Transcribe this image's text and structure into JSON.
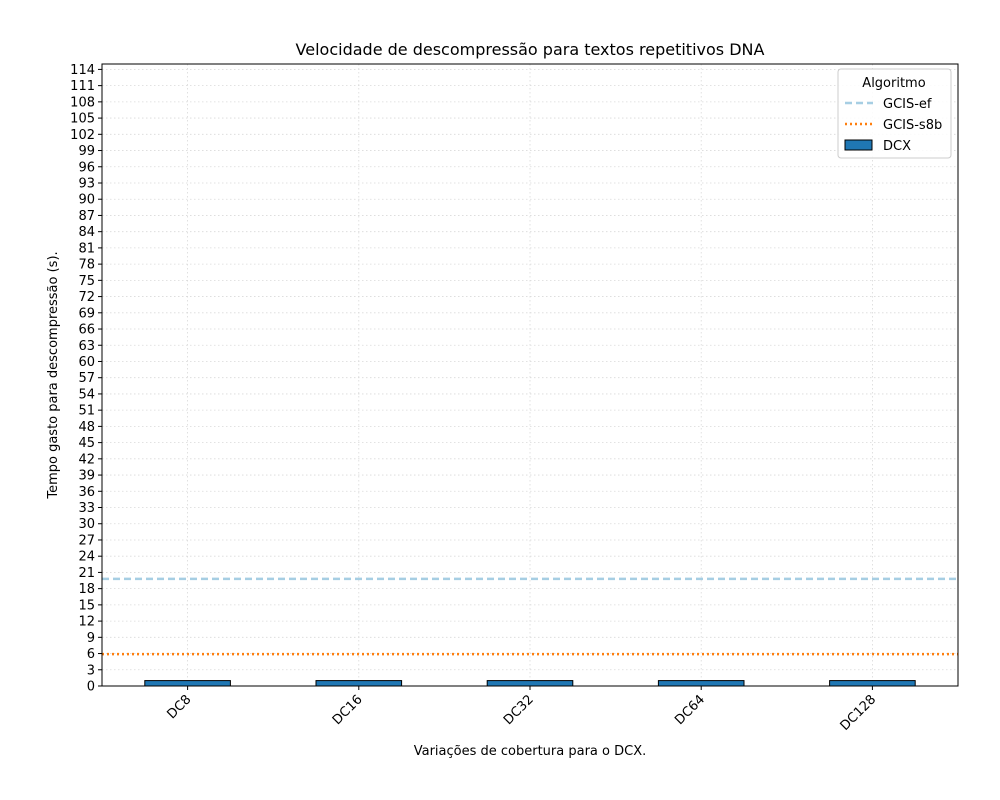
{
  "chart_data": {
    "type": "bar",
    "title": "Velocidade de descompressão para textos repetitivos DNA",
    "xlabel": "Variações de cobertura para o DCX.",
    "ylabel": "Tempo gasto para descompressão (s).",
    "categories": [
      "DC8",
      "DC16",
      "DC32",
      "DC64",
      "DC128"
    ],
    "series": [
      {
        "name": "DCX",
        "values": [
          1.0,
          1.0,
          1.0,
          1.0,
          1.0
        ],
        "color": "#1f77b4"
      }
    ],
    "reference_lines": [
      {
        "name": "GCIS-ef",
        "y": 19.8,
        "style": "dashed",
        "color": "#a6cee3"
      },
      {
        "name": "GCIS-s8b",
        "y": 5.9,
        "style": "dotted",
        "color": "#ff7f0e"
      }
    ],
    "ylim": [
      0,
      115
    ],
    "yticks": [
      0,
      3,
      6,
      9,
      12,
      15,
      18,
      21,
      24,
      27,
      30,
      33,
      36,
      39,
      42,
      45,
      48,
      51,
      54,
      57,
      60,
      63,
      66,
      69,
      72,
      75,
      78,
      81,
      84,
      87,
      90,
      93,
      96,
      99,
      102,
      105,
      108,
      111,
      114
    ],
    "grid": true,
    "legend": {
      "title": "Algoritmo",
      "position": "top-right"
    }
  }
}
